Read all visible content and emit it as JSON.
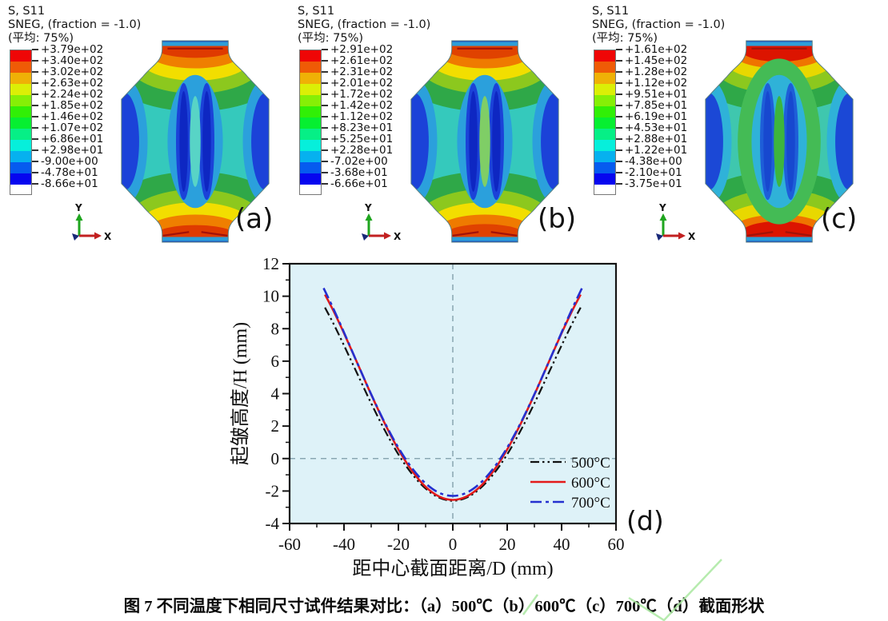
{
  "colorbar_colors": [
    "#EF0606",
    "#EF5B06",
    "#EFB106",
    "#DBEF06",
    "#86EF06",
    "#31EF06",
    "#06EF31",
    "#06EF86",
    "#06EFDB",
    "#06B1EF",
    "#065BEF",
    "#0606EF"
  ],
  "panels": [
    {
      "label": "(a)",
      "header": {
        "line1": "S, S11",
        "line2": "SNEG, (fraction = -1.0)",
        "line3": "(平均: 75%)"
      },
      "colorbar_labels": [
        "+3.79e+02",
        "+3.40e+02",
        "+3.02e+02",
        "+2.63e+02",
        "+2.24e+02",
        "+1.85e+02",
        "+1.46e+02",
        "+1.07e+02",
        "+6.86e+01",
        "+2.98e+01",
        "-9.00e+00",
        "-4.78e+01",
        "-8.66e+01"
      ],
      "triad": {
        "y_label": "Y",
        "x_label": "X"
      },
      "palette": {
        "body": "#35c9bc",
        "halo": "#2ba0dc",
        "stripe": "#1b42d8",
        "stripeCore": "#0e27c2",
        "eye": "#58d4c6",
        "side": "#1b42d8",
        "bandGreen": "#2fa848",
        "bandLime": "#8cc81e",
        "bandYellow": "#f2de00",
        "bandOrange": "#ef7f00",
        "bandRed": "#df3a00",
        "tabStrip": "#2e9ed8",
        "tabEdge": "#1446c6",
        "redLine": "#a31208",
        "outline": "#5b8080",
        "redScale": 1.0
      }
    },
    {
      "label": "(b)",
      "header": {
        "line1": "S, S11",
        "line2": "SNEG, (fraction = -1.0)",
        "line3": "(平均: 75%)"
      },
      "colorbar_labels": [
        "+2.91e+02",
        "+2.61e+02",
        "+2.31e+02",
        "+2.01e+02",
        "+1.72e+02",
        "+1.42e+02",
        "+1.12e+02",
        "+8.23e+01",
        "+5.25e+01",
        "+2.28e+01",
        "-7.02e+00",
        "-3.68e+01",
        "-6.66e+01"
      ],
      "triad": {
        "y_label": "Y",
        "x_label": "X"
      },
      "palette": {
        "body": "#35c9bc",
        "halo": "#2ba0dc",
        "stripe": "#1b42d8",
        "stripeCore": "#0e27c2",
        "eye": "#7fce66",
        "side": "#1b42d8",
        "bandGreen": "#2fa848",
        "bandLime": "#8cc81e",
        "bandYellow": "#f2de00",
        "bandOrange": "#ef7a00",
        "bandRed": "#e04200",
        "tabStrip": "#2e9ed8",
        "tabEdge": "#1446c6",
        "redLine": "#a31208",
        "outline": "#5b8080",
        "redScale": 1.1
      }
    },
    {
      "label": "(c)",
      "header": {
        "line1": "S, S11",
        "line2": "SNEG, (fraction = -1.0)",
        "line3": "(平均: 75%)"
      },
      "colorbar_labels": [
        "+1.61e+02",
        "+1.45e+02",
        "+1.28e+02",
        "+1.12e+02",
        "+9.51e+01",
        "+7.85e+01",
        "+6.19e+01",
        "+4.53e+01",
        "+2.88e+01",
        "+1.22e+01",
        "-4.38e+00",
        "-2.10e+01",
        "-3.75e+01"
      ],
      "triad": {
        "y_label": "Y",
        "x_label": "X"
      },
      "palette": {
        "body": "#3fc7ae",
        "halo": "#2fb2d8",
        "stripe": "#1e5ed8",
        "stripeCore": "#1748cf",
        "eye": "#3db53d",
        "side": "#1b48d6",
        "greenWash": "#44bb55",
        "bandGreen": "#2fa848",
        "bandLime": "#8cc81e",
        "bandYellow": "#e8d800",
        "bandOrange": "#ef7400",
        "bandRed": "#dc1400",
        "tabStrip": "#2e9ed8",
        "tabEdge": "#1446c6",
        "redLine": "#a31208",
        "outline": "#5b8080",
        "redScale": 1.4
      }
    }
  ],
  "chart_data": {
    "type": "line",
    "title": "",
    "xlabel": "距中心截面距离/D (mm)",
    "ylabel": "起皱高度/H (mm)",
    "xlim": [
      -60,
      60
    ],
    "ylim": [
      -4,
      12
    ],
    "x_major_ticks": [
      -60,
      -40,
      -20,
      0,
      20,
      40,
      60
    ],
    "y_major_ticks": [
      -4,
      -2,
      0,
      2,
      4,
      6,
      8,
      10,
      12
    ],
    "x_minor_ticks": [
      -50,
      -30,
      -10,
      10,
      30,
      50
    ],
    "y_minor_ticks": [
      -3,
      -1,
      1,
      3,
      5,
      7,
      9,
      11
    ],
    "grid": false,
    "plot_bg": "#def2f8",
    "reference_lines": {
      "h_at_y": 0,
      "v_at_x": 0,
      "color": "#7b9aa5"
    },
    "legend_position": "lower-right",
    "panel_label": "(d)",
    "series": [
      {
        "name": "500°C",
        "color": "#111111",
        "style": "dash-dot-dot",
        "width": 2.2,
        "x": [
          -47,
          -44,
          -40,
          -35,
          -30,
          -25,
          -20,
          -15,
          -10,
          -5,
          0,
          5,
          10,
          15,
          20,
          25,
          30,
          35,
          40,
          44,
          47
        ],
        "y": [
          9.3,
          8.35,
          6.97,
          5.18,
          3.4,
          1.74,
          0.26,
          -0.95,
          -1.85,
          -2.41,
          -2.6,
          -2.41,
          -1.85,
          -0.95,
          0.26,
          1.74,
          3.4,
          5.18,
          6.97,
          8.35,
          9.3
        ]
      },
      {
        "name": "600°C",
        "color": "#e31a1a",
        "style": "solid",
        "width": 2.6,
        "x": [
          -47,
          -44,
          -40,
          -35,
          -30,
          -25,
          -20,
          -15,
          -10,
          -5,
          0,
          5,
          10,
          15,
          20,
          25,
          30,
          35,
          40,
          44,
          47
        ],
        "y": [
          10.1,
          9.14,
          7.72,
          5.84,
          3.94,
          2.16,
          0.56,
          -0.75,
          -1.74,
          -2.34,
          -2.55,
          -2.34,
          -1.74,
          -0.75,
          0.56,
          2.16,
          3.94,
          5.84,
          7.72,
          9.14,
          10.1
        ]
      },
      {
        "name": "700°C",
        "color": "#2430cf",
        "style": "dash-dot",
        "width": 2.6,
        "x": [
          -47.5,
          -44,
          -40,
          -35,
          -30,
          -25,
          -20,
          -15,
          -10,
          -5,
          0,
          5,
          10,
          15,
          20,
          25,
          30,
          35,
          40,
          44,
          47.5
        ],
        "y": [
          10.5,
          9.27,
          7.77,
          5.84,
          3.96,
          2.21,
          0.67,
          -0.59,
          -1.53,
          -2.11,
          -2.3,
          -2.11,
          -1.53,
          -0.59,
          0.67,
          2.21,
          3.96,
          5.84,
          7.77,
          9.27,
          10.5
        ]
      }
    ]
  },
  "caption": {
    "text": "图 7 不同温度下相同尺寸试件结果对比：（a）500℃（b）600℃（c）700℃（d）截面形状"
  },
  "stray_mark": {
    "color": "#a9e7a0"
  }
}
